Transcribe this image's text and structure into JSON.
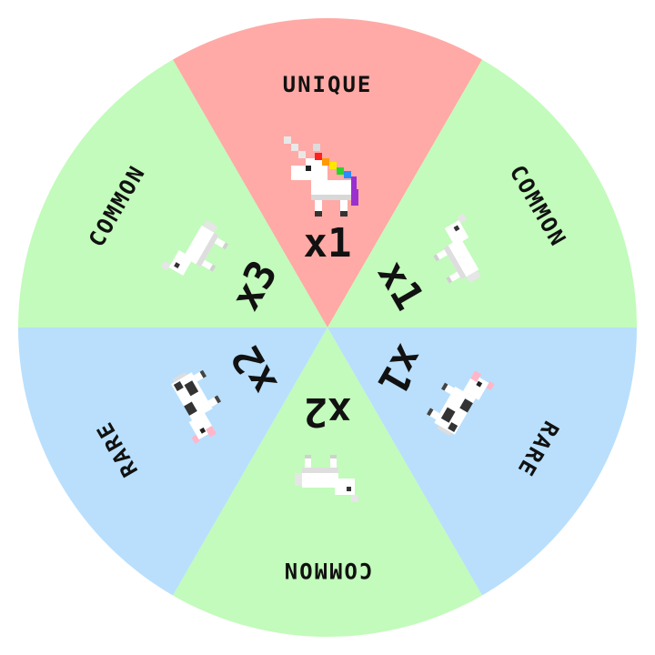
{
  "wheel": {
    "segments": [
      {
        "id": "unique-top",
        "label": "UNIQUE",
        "rarity": "unique",
        "color": "#ffaaa6",
        "count_text": "x1",
        "icon": "unicorn-icon"
      },
      {
        "id": "common-upper-right",
        "label": "COMMON",
        "rarity": "common",
        "color": "#c2fbbb",
        "count_text": "x1",
        "icon": "white-horse-icon"
      },
      {
        "id": "rare-lower-right",
        "label": "RARE",
        "rarity": "rare",
        "color": "#b9dffc",
        "count_text": "x1",
        "icon": "cow-icon"
      },
      {
        "id": "common-bottom",
        "label": "COMMON",
        "rarity": "common",
        "color": "#c2fbbb",
        "count_text": "x2",
        "icon": "white-horse-icon"
      },
      {
        "id": "rare-lower-left",
        "label": "RARE",
        "rarity": "rare",
        "color": "#b9dffc",
        "count_text": "x2",
        "icon": "cow-icon"
      },
      {
        "id": "common-upper-left",
        "label": "COMMON",
        "rarity": "common",
        "color": "#c2fbbb",
        "count_text": "x3",
        "icon": "white-horse-icon"
      }
    ]
  }
}
